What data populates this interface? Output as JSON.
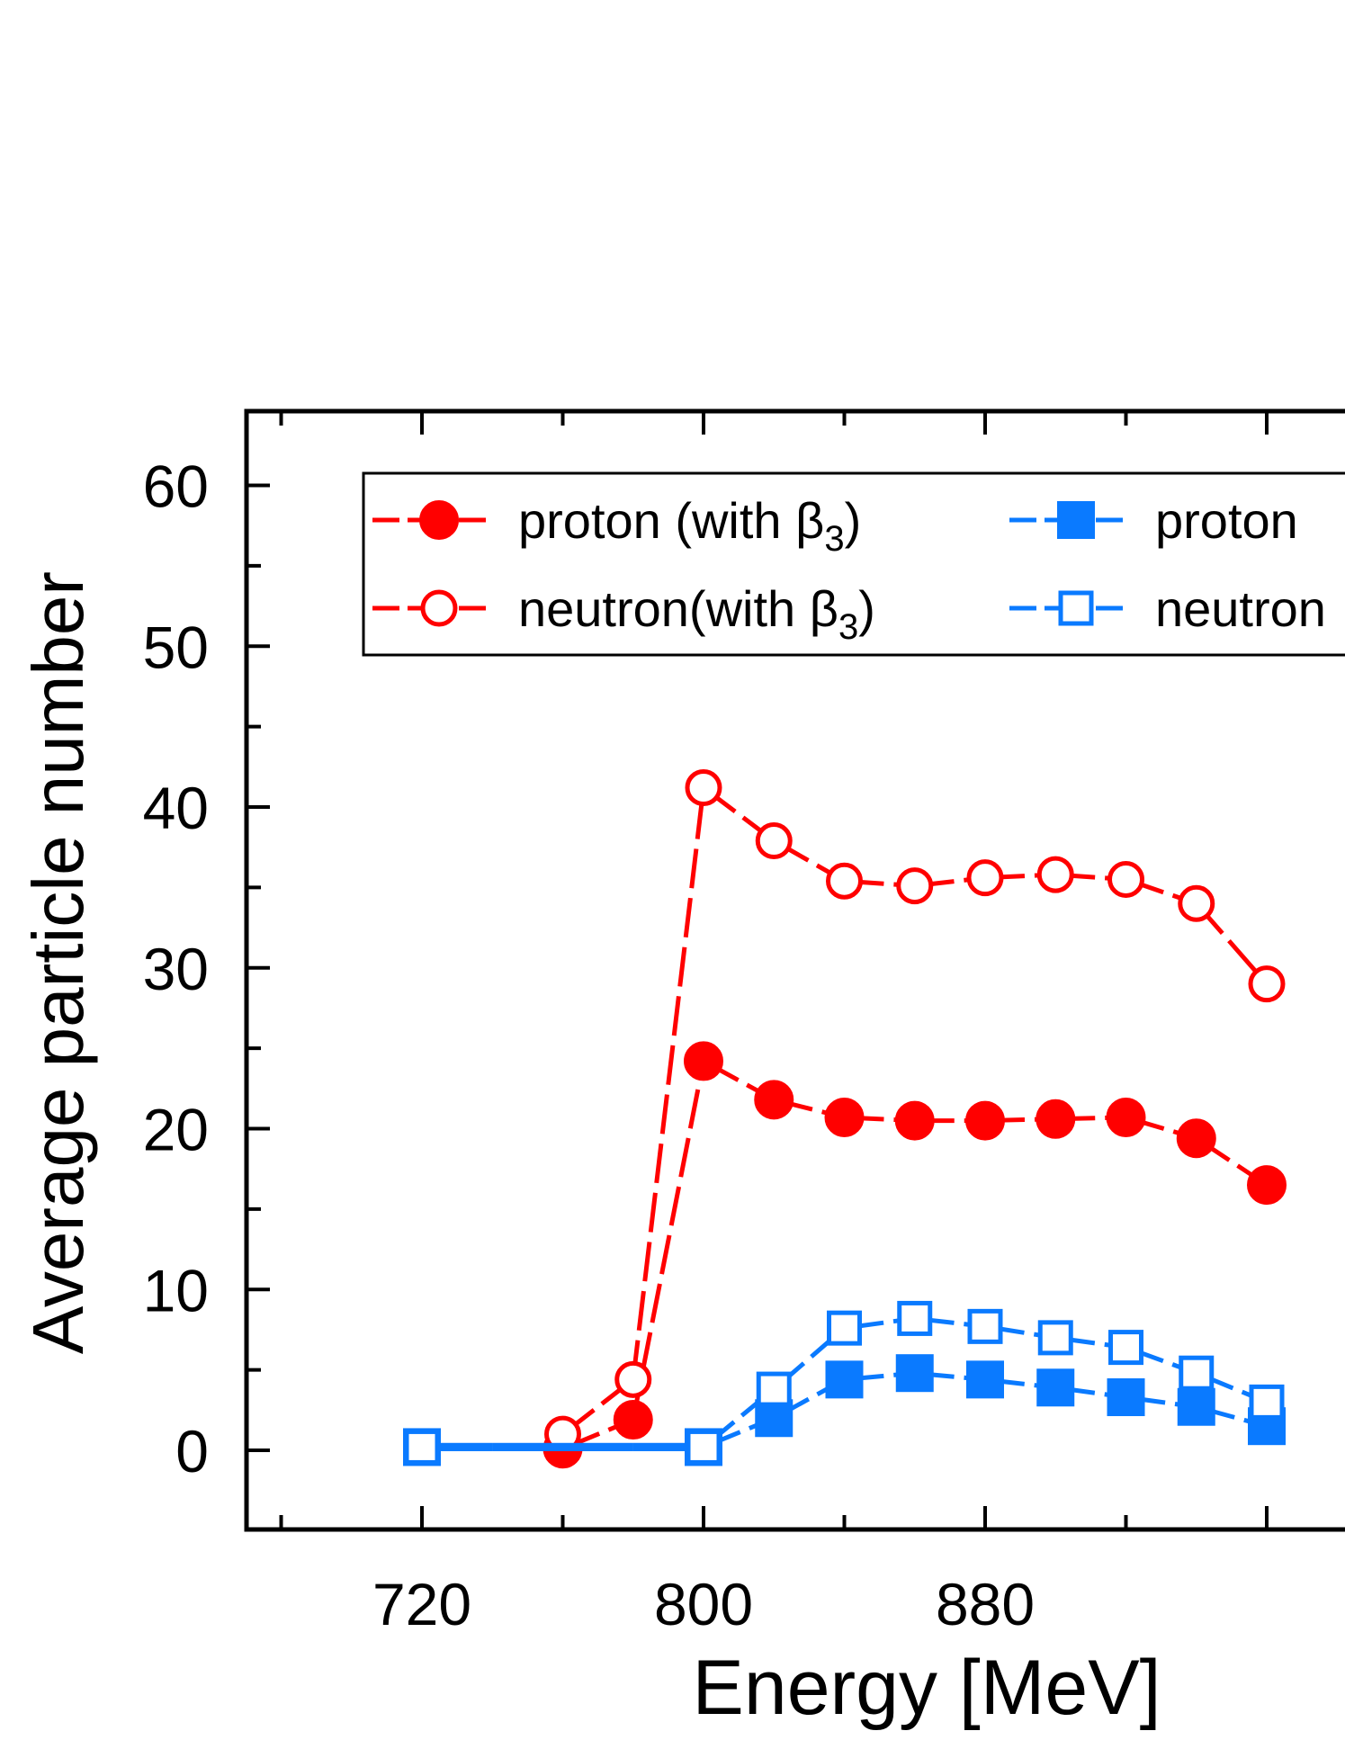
{
  "chart_data": {
    "type": "line",
    "title": "",
    "xlabel": "Energy [MeV]",
    "ylabel": "Average particle number",
    "xlim": [
      640,
      1000
    ],
    "ylim": [
      -5,
      65
    ],
    "x_tick_labels": [
      "720",
      "800",
      "880"
    ],
    "y_tick_labels": [
      "0",
      "10",
      "20",
      "30",
      "40",
      "50",
      "60"
    ],
    "x_ticks": [
      720,
      800,
      880
    ],
    "y_ticks": [
      0,
      10,
      20,
      30,
      40,
      50,
      60
    ],
    "legend_position": "top",
    "series": [
      {
        "name": "proton  (with β3)",
        "name_main": "proton  (with β",
        "name_sub": "3",
        "name_end": ")",
        "color": "#ff0000",
        "marker": "circle-filled",
        "points": [
          [
            760,
            0.1
          ],
          [
            780,
            1.9
          ],
          [
            800,
            24.2
          ],
          [
            820,
            21.8
          ],
          [
            840,
            20.7
          ],
          [
            860,
            20.5
          ],
          [
            880,
            20.5
          ],
          [
            900,
            20.6
          ],
          [
            920,
            20.7
          ],
          [
            940,
            19.4
          ],
          [
            960,
            16.5
          ]
        ]
      },
      {
        "name": "neutron(with β3)",
        "name_main": "neutron(with β",
        "name_sub": "3",
        "name_end": ")",
        "color": "#ff0000",
        "marker": "circle-open",
        "points": [
          [
            760,
            1.0
          ],
          [
            780,
            4.4
          ],
          [
            800,
            41.2
          ],
          [
            820,
            37.9
          ],
          [
            840,
            35.4
          ],
          [
            860,
            35.1
          ],
          [
            880,
            35.6
          ],
          [
            900,
            35.8
          ],
          [
            920,
            35.5
          ],
          [
            940,
            34.0
          ],
          [
            960,
            29.0
          ]
        ]
      },
      {
        "name": "proton",
        "name_main": "proton",
        "name_sub": "",
        "name_end": "",
        "color": "#0a7aff",
        "marker": "square-filled",
        "points": [
          [
            720,
            0.2
          ],
          [
            740,
            0.2
          ],
          [
            760,
            0.2
          ],
          [
            780,
            0.2
          ],
          [
            800,
            0.2
          ],
          [
            820,
            2.0
          ],
          [
            840,
            4.4
          ],
          [
            860,
            4.8
          ],
          [
            880,
            4.4
          ],
          [
            900,
            3.9
          ],
          [
            920,
            3.3
          ],
          [
            940,
            2.7
          ],
          [
            960,
            1.5
          ]
        ]
      },
      {
        "name": "neutron",
        "name_main": "neutron",
        "name_sub": "",
        "name_end": "",
        "color": "#0a7aff",
        "marker": "square-open",
        "points": [
          [
            720,
            0.2
          ],
          [
            740,
            0.2
          ],
          [
            760,
            0.2
          ],
          [
            780,
            0.2
          ],
          [
            800,
            0.2
          ],
          [
            820,
            3.8
          ],
          [
            840,
            7.6
          ],
          [
            860,
            8.2
          ],
          [
            880,
            7.7
          ],
          [
            900,
            7.0
          ],
          [
            920,
            6.4
          ],
          [
            940,
            4.8
          ],
          [
            960,
            3.0
          ]
        ]
      }
    ]
  }
}
